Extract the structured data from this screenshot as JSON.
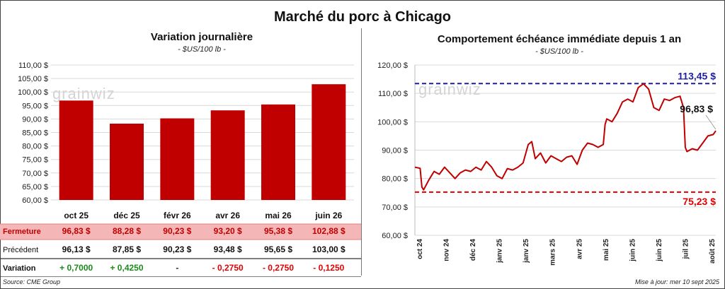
{
  "main_title": "Marché du porc à Chicago",
  "watermark": "grainwiz",
  "footer": {
    "source": "Source: CME Group",
    "update": "Mise à jour: mer 10 sept 2025"
  },
  "left": {
    "title": "Variation journalière",
    "subtitle": "- $US/100 lb -",
    "rows": [
      {
        "label": "Fermeture",
        "values": [
          "96,83  $",
          "88,28  $",
          "90,23  $",
          "93,20  $",
          "95,38  $",
          "102,88  $"
        ],
        "highlight": true
      },
      {
        "label": "Précédent",
        "values": [
          "96,13  $",
          "87,85  $",
          "90,23  $",
          "93,48  $",
          "95,65  $",
          "103,00  $"
        ],
        "highlight": false
      },
      {
        "label": "Variation",
        "values": [
          "+ 0,7000",
          "+ 0,4250",
          "-",
          "- 0,2750",
          "- 0,2750",
          "- 0,1250"
        ],
        "colors": [
          "#1a8a1a",
          "#1a8a1a",
          "#222222",
          "#e00000",
          "#e00000",
          "#e00000"
        ],
        "highlight": false
      }
    ]
  },
  "right": {
    "title": "Comportement  échéance immédiate depuis 1 an",
    "subtitle": "- $US/100 lb -"
  },
  "colors": {
    "bar": "#c00000",
    "line": "#c00000",
    "high_line": "#1f1fa0",
    "low_line": "#e00000",
    "row_highlight": "#f4b6b6"
  },
  "chart_data": [
    {
      "type": "bar",
      "title": "Variation journalière",
      "unit": "$US/100 lb",
      "categories": [
        "oct 25",
        "déc 25",
        "févr 26",
        "avr 26",
        "mai 26",
        "juin 26"
      ],
      "values": [
        96.83,
        88.28,
        90.23,
        93.2,
        95.38,
        102.88
      ],
      "ylim": [
        60,
        110
      ],
      "yticks": [
        60,
        65,
        70,
        75,
        80,
        85,
        90,
        95,
        100,
        105,
        110
      ],
      "ytick_labels": [
        "60,00 $",
        "65,00 $",
        "70,00 $",
        "75,00 $",
        "80,00 $",
        "85,00 $",
        "90,00 $",
        "95,00 $",
        "100,00 $",
        "105,00 $",
        "110,00 $"
      ],
      "grid": true
    },
    {
      "type": "line",
      "title": "Comportement  échéance immédiate depuis 1 an",
      "unit": "$US/100 lb",
      "ylim": [
        60,
        120
      ],
      "yticks": [
        60,
        70,
        80,
        90,
        100,
        110,
        120
      ],
      "ytick_labels": [
        "60,00 $",
        "70,00 $",
        "80,00 $",
        "90,00 $",
        "100,00 $",
        "110,00 $",
        "120,00 $"
      ],
      "xticks": [
        "oct 24",
        "nov 24",
        "déc 24",
        "janv 25",
        "janv 25",
        "mars 25",
        "avr 25",
        "mai 25",
        "juin 25",
        "juin 25",
        "juil 25",
        "août 25"
      ],
      "x": [
        "2024-09-30",
        "2024-10-06",
        "2024-10-08",
        "2024-10-10",
        "2024-10-16",
        "2024-10-22",
        "2024-10-28",
        "2024-11-03",
        "2024-11-09",
        "2024-11-15",
        "2024-11-21",
        "2024-11-27",
        "2024-12-03",
        "2024-12-09",
        "2024-12-15",
        "2024-12-21",
        "2024-12-27",
        "2025-01-02",
        "2025-01-08",
        "2025-01-14",
        "2025-01-20",
        "2025-01-26",
        "2025-02-01",
        "2025-02-07",
        "2025-02-11",
        "2025-02-15",
        "2025-02-21",
        "2025-02-27",
        "2025-03-05",
        "2025-03-11",
        "2025-03-17",
        "2025-03-23",
        "2025-03-29",
        "2025-04-04",
        "2025-04-10",
        "2025-04-16",
        "2025-04-22",
        "2025-04-28",
        "2025-05-04",
        "2025-05-06",
        "2025-05-08",
        "2025-05-14",
        "2025-05-20",
        "2025-05-26",
        "2025-06-01",
        "2025-06-07",
        "2025-06-13",
        "2025-06-19",
        "2025-06-25",
        "2025-07-01",
        "2025-07-07",
        "2025-07-13",
        "2025-07-19",
        "2025-07-25",
        "2025-07-31",
        "2025-08-04",
        "2025-08-06",
        "2025-08-08",
        "2025-08-14",
        "2025-08-20",
        "2025-08-26",
        "2025-09-01",
        "2025-09-07",
        "2025-09-10"
      ],
      "values": [
        84.0,
        83.6,
        77.0,
        76.0,
        79.5,
        82.5,
        81.5,
        84.0,
        82.0,
        80.0,
        82.0,
        83.0,
        82.5,
        84.0,
        83.0,
        86.0,
        84.0,
        81.0,
        80.0,
        83.5,
        83.0,
        84.0,
        85.5,
        92.0,
        93.0,
        87.0,
        89.0,
        85.5,
        88.0,
        87.0,
        86.0,
        87.5,
        88.0,
        85.0,
        90.0,
        92.5,
        92.0,
        91.0,
        92.0,
        99.0,
        101.0,
        100.0,
        103.0,
        107.0,
        108.0,
        107.0,
        112.0,
        113.4,
        111.5,
        105.0,
        104.0,
        108.0,
        107.5,
        108.5,
        109.0,
        105.0,
        91.0,
        89.5,
        90.5,
        90.0,
        92.5,
        95.0,
        95.5,
        96.83
      ],
      "reference_lines": [
        {
          "name": "max",
          "value": 113.45,
          "label": "113,45 $",
          "style": "dashed"
        },
        {
          "name": "min",
          "value": 75.23,
          "label": "75,23 $",
          "style": "dashed"
        }
      ],
      "last_label": "96,83 $",
      "grid": true
    }
  ]
}
